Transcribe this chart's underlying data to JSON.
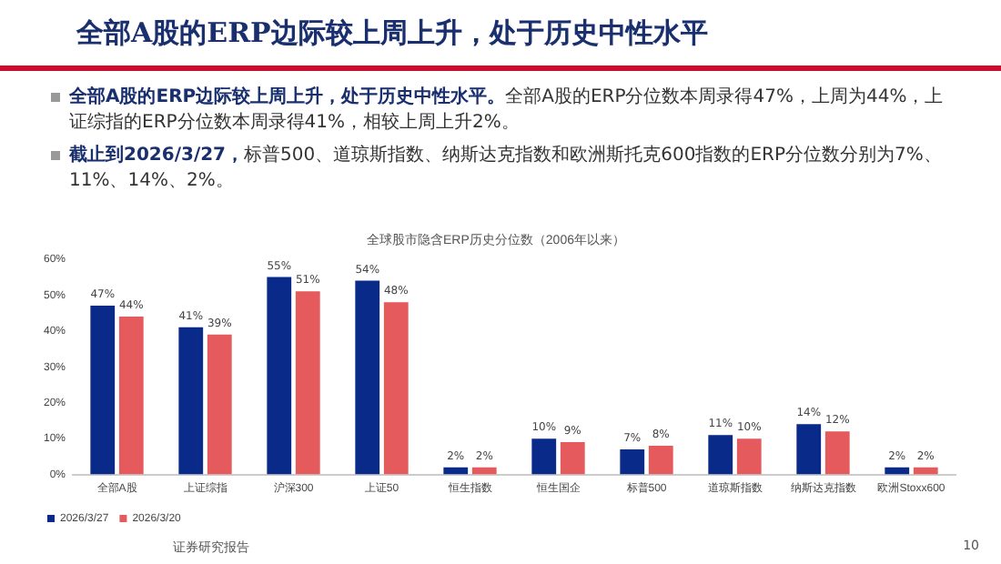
{
  "chart_data": {
    "type": "bar",
    "title": "全球股市隐含ERP历史分位数（2006年以来）",
    "categories": [
      "全部A股",
      "上证综指",
      "沪深300",
      "上证50",
      "恒生指数",
      "恒生国企",
      "标普500",
      "道琼斯指数",
      "纳斯达克指数",
      "欧洲Stoxx600"
    ],
    "series": [
      {
        "name": "2026/3/27",
        "color": "#0a2a8a",
        "values": [
          47,
          41,
          55,
          54,
          2,
          10,
          7,
          11,
          14,
          2
        ],
        "value_labels": [
          "47%",
          "41%",
          "55%",
          "54%",
          "2%",
          "10%",
          "7%",
          "11%",
          "14%",
          "2%"
        ]
      },
      {
        "name": "2026/3/20",
        "color": "#e55a5c",
        "values": [
          44,
          39,
          51,
          48,
          2,
          9,
          8,
          10,
          12,
          2
        ],
        "value_labels": [
          "44%",
          "39%",
          "51%",
          "48%",
          "2%",
          "9%",
          "8%",
          "10%",
          "12%",
          "2%"
        ]
      }
    ],
    "ylim": [
      0,
      60
    ],
    "yticks": [
      {
        "value": 0,
        "label": "0%"
      },
      {
        "value": 10,
        "label": "10%"
      },
      {
        "value": 20,
        "label": "20%"
      },
      {
        "value": 30,
        "label": "30%"
      },
      {
        "value": 40,
        "label": "40%"
      },
      {
        "value": 50,
        "label": "50%"
      },
      {
        "value": 60,
        "label": "60%"
      }
    ],
    "grid": false,
    "legend": "bottom",
    "annotations": [
      "全部A股的ERP边际较上周上升，处于历史中性水平",
      "全部A股的ERP边际较上周上升，处于历史中性水平。",
      "全部A股的ERP分位数本周录得47%，上周为44%，上证综指的ERP分位数本周录得41%，相较上周上升2%。",
      "截止到2026/3/27，",
      "标普500、道琼斯指数、纳斯达克指数和欧洲斯托克600指数的ERP分位数分别为7%、11%、14%、2%。",
      "证券研究报告",
      "10"
    ]
  }
}
